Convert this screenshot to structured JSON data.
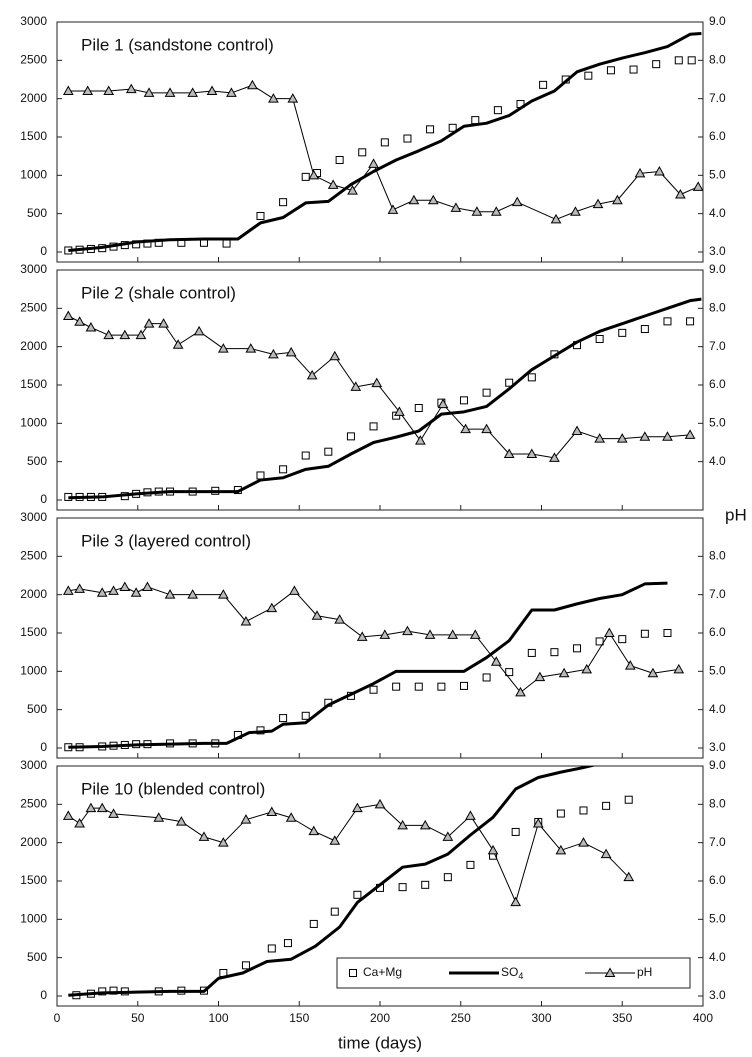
{
  "chart_data": [
    {
      "type": "line",
      "title": "Pile 1 (sandstone control)",
      "xlim": [
        0,
        400
      ],
      "xticks": [
        0,
        50,
        100,
        150,
        200,
        250,
        300,
        350,
        400
      ],
      "ylim": [
        0,
        3000
      ],
      "yticks": [
        0,
        500,
        1000,
        1500,
        2000,
        2500,
        3000
      ],
      "y2lim": [
        3,
        9
      ],
      "y2ticks": [
        {
          "value": 3,
          "label": "3.0"
        },
        {
          "value": 4,
          "label": "4.0"
        },
        {
          "value": 5,
          "label": "5.0"
        },
        {
          "value": 6,
          "label": "6.0"
        },
        {
          "value": 7,
          "label": "7.0"
        },
        {
          "value": 8,
          "label": "8.0"
        },
        {
          "value": 9,
          "label": "9.0"
        }
      ],
      "series": [
        {
          "color": "#000000",
          "marker": "square",
          "line_width": 0,
          "x": [
            7,
            14,
            21,
            28,
            35,
            42,
            49,
            56,
            63,
            77,
            91,
            105,
            126,
            140,
            154,
            161,
            175,
            189,
            203,
            217,
            231,
            245,
            259,
            273,
            287,
            301,
            315,
            329,
            343,
            357,
            371,
            385,
            393
          ],
          "values": [
            20,
            30,
            40,
            50,
            70,
            90,
            100,
            110,
            120,
            120,
            120,
            110,
            470,
            650,
            980,
            1030,
            1200,
            1300,
            1430,
            1480,
            1600,
            1620,
            1720,
            1850,
            1930,
            2180,
            2250,
            2300,
            2370,
            2380,
            2450,
            2500,
            2500
          ]
        },
        {
          "color": "#000000",
          "line_width": 3,
          "x": [
            7,
            28,
            49,
            70,
            91,
            112,
            126,
            140,
            154,
            168,
            182,
            196,
            210,
            224,
            238,
            252,
            266,
            280,
            294,
            308,
            322,
            336,
            350,
            364,
            378,
            392,
            399
          ],
          "values": [
            20,
            60,
            130,
            160,
            170,
            170,
            380,
            450,
            640,
            660,
            880,
            1050,
            1200,
            1320,
            1450,
            1640,
            1680,
            1780,
            1970,
            2100,
            2350,
            2450,
            2530,
            2600,
            2680,
            2840,
            2850
          ]
        },
        {
          "color": "#000000",
          "marker": "triangle",
          "line_width": 1,
          "axis": "y2",
          "x": [
            7,
            19,
            32,
            46,
            57,
            70,
            84,
            96,
            108,
            121,
            134,
            146,
            159,
            171,
            183,
            196,
            208,
            221,
            233,
            247,
            260,
            272,
            285,
            309,
            321,
            335,
            347,
            361,
            373,
            386,
            397
          ],
          "values": [
            7.2,
            7.2,
            7.2,
            7.25,
            7.15,
            7.15,
            7.15,
            7.2,
            7.15,
            7.35,
            7.0,
            7.0,
            5.0,
            4.75,
            4.6,
            5.3,
            4.1,
            4.35,
            4.35,
            4.15,
            4.05,
            4.05,
            4.3,
            3.85,
            4.05,
            4.25,
            4.35,
            5.05,
            5.1,
            4.5,
            4.7
          ]
        }
      ]
    },
    {
      "type": "line",
      "title": "Pile 2 (shale control)",
      "y2label": "pH",
      "xlim": [
        0,
        400
      ],
      "xticks": [
        0,
        50,
        100,
        150,
        200,
        250,
        300,
        350,
        400
      ],
      "ylim": [
        0,
        3000
      ],
      "yticks": [
        0,
        500,
        1000,
        1500,
        2000,
        2500,
        3000
      ],
      "y2lim": [
        3,
        9
      ],
      "y2ticks": [
        {
          "value": 4,
          "label": "4.0"
        },
        {
          "value": 5,
          "label": "5.0"
        },
        {
          "value": 6,
          "label": "6.0"
        },
        {
          "value": 7,
          "label": "7.0"
        },
        {
          "value": 8,
          "label": "8.0"
        },
        {
          "value": 9,
          "label": "9.0"
        }
      ],
      "series": [
        {
          "color": "#000000",
          "marker": "square",
          "line_width": 0,
          "x": [
            7,
            14,
            21,
            28,
            42,
            49,
            56,
            63,
            70,
            84,
            98,
            112,
            126,
            140,
            154,
            168,
            182,
            196,
            210,
            224,
            238,
            252,
            266,
            280,
            294,
            308,
            322,
            336,
            350,
            364,
            378,
            392
          ],
          "values": [
            40,
            40,
            40,
            40,
            50,
            80,
            100,
            110,
            110,
            110,
            120,
            130,
            320,
            400,
            580,
            630,
            830,
            960,
            1100,
            1200,
            1270,
            1300,
            1400,
            1530,
            1600,
            1900,
            2020,
            2100,
            2180,
            2230,
            2330,
            2330
          ]
        },
        {
          "color": "#000000",
          "line_width": 3,
          "x": [
            7,
            28,
            49,
            70,
            91,
            112,
            126,
            140,
            154,
            168,
            182,
            196,
            210,
            224,
            238,
            252,
            266,
            280,
            294,
            308,
            322,
            336,
            350,
            364,
            378,
            392,
            399
          ],
          "values": [
            30,
            40,
            80,
            110,
            110,
            110,
            260,
            290,
            400,
            440,
            600,
            750,
            820,
            900,
            1120,
            1150,
            1220,
            1450,
            1700,
            1880,
            2060,
            2200,
            2300,
            2400,
            2500,
            2600,
            2620
          ]
        },
        {
          "color": "#000000",
          "marker": "triangle",
          "line_width": 1,
          "axis": "y2",
          "x": [
            7,
            14,
            21,
            32,
            42,
            52,
            57,
            66,
            75,
            88,
            103,
            120,
            134,
            145,
            158,
            172,
            185,
            198,
            212,
            225,
            239,
            253,
            266,
            280,
            294,
            308,
            322,
            336,
            350,
            364,
            378,
            392
          ],
          "values": [
            7.8,
            7.65,
            7.5,
            7.3,
            7.3,
            7.3,
            7.6,
            7.6,
            7.05,
            7.4,
            6.95,
            6.95,
            6.8,
            6.85,
            6.25,
            6.75,
            5.95,
            6.05,
            5.3,
            4.55,
            5.5,
            4.85,
            4.85,
            4.2,
            4.2,
            4.1,
            4.8,
            4.6,
            4.6,
            4.65,
            4.65,
            4.7
          ]
        }
      ]
    },
    {
      "type": "line",
      "title": "Pile 3 (layered control)",
      "xlim": [
        0,
        400
      ],
      "xticks": [
        0,
        50,
        100,
        150,
        200,
        250,
        300,
        350,
        400
      ],
      "ylim": [
        0,
        3000
      ],
      "yticks": [
        0,
        500,
        1000,
        1500,
        2000,
        2500,
        3000
      ],
      "y2lim": [
        3,
        9
      ],
      "y2ticks": [
        {
          "value": 3,
          "label": "3.0"
        },
        {
          "value": 4,
          "label": "4.0"
        },
        {
          "value": 5,
          "label": "5.0"
        },
        {
          "value": 6,
          "label": "6.0"
        },
        {
          "value": 7,
          "label": "7.0"
        },
        {
          "value": 8,
          "label": "8.0"
        }
      ],
      "series": [
        {
          "color": "#000000",
          "marker": "square",
          "line_width": 0,
          "x": [
            7,
            14,
            28,
            35,
            42,
            49,
            56,
            70,
            84,
            98,
            112,
            126,
            140,
            154,
            168,
            182,
            196,
            210,
            224,
            238,
            252,
            266,
            280,
            294,
            308,
            322,
            336,
            350,
            364,
            378
          ],
          "values": [
            10,
            10,
            20,
            30,
            40,
            50,
            50,
            60,
            60,
            60,
            170,
            230,
            390,
            420,
            590,
            680,
            760,
            800,
            800,
            800,
            810,
            920,
            990,
            1240,
            1250,
            1300,
            1390,
            1420,
            1490,
            1500
          ]
        },
        {
          "color": "#000000",
          "line_width": 3,
          "x": [
            7,
            28,
            49,
            70,
            91,
            105,
            119,
            133,
            140,
            154,
            168,
            182,
            196,
            210,
            224,
            238,
            252,
            266,
            280,
            294,
            308,
            322,
            336,
            350,
            364,
            378
          ],
          "values": [
            10,
            20,
            40,
            50,
            60,
            60,
            200,
            220,
            310,
            330,
            560,
            700,
            840,
            1000,
            1000,
            1000,
            1000,
            1180,
            1400,
            1800,
            1800,
            1880,
            1950,
            2000,
            2140,
            2150
          ]
        },
        {
          "color": "#000000",
          "marker": "triangle",
          "line_width": 1,
          "axis": "y2",
          "x": [
            7,
            14,
            28,
            35,
            42,
            49,
            56,
            70,
            84,
            103,
            117,
            133,
            147,
            161,
            175,
            189,
            203,
            217,
            231,
            245,
            259,
            272,
            287,
            299,
            314,
            328,
            342,
            355,
            369,
            385
          ],
          "values": [
            7.1,
            7.15,
            7.05,
            7.1,
            7.2,
            7.05,
            7.2,
            7.0,
            7.0,
            7.0,
            6.3,
            6.65,
            7.1,
            6.45,
            6.35,
            5.9,
            5.95,
            6.05,
            5.95,
            5.95,
            5.95,
            5.25,
            4.45,
            4.85,
            4.95,
            5.05,
            6.0,
            5.15,
            4.95,
            5.05
          ]
        }
      ]
    },
    {
      "type": "line",
      "title": "Pile 10 (blended control)",
      "xlabel": "time (days)",
      "legend": "lower right",
      "xlim": [
        0,
        400
      ],
      "xticks": [
        0,
        50,
        100,
        150,
        200,
        250,
        300,
        350,
        400
      ],
      "ylim": [
        0,
        3000
      ],
      "yticks": [
        0,
        500,
        1000,
        1500,
        2000,
        2500,
        3000
      ],
      "y2lim": [
        3,
        9
      ],
      "y2ticks": [
        {
          "value": 3,
          "label": "3.0"
        },
        {
          "value": 4,
          "label": "4.0"
        },
        {
          "value": 5,
          "label": "5.0"
        },
        {
          "value": 6,
          "label": "6.0"
        },
        {
          "value": 7,
          "label": "7.0"
        },
        {
          "value": 8,
          "label": "8.0"
        },
        {
          "value": 9,
          "label": "9.0"
        }
      ],
      "series": [
        {
          "name": "Ca+Mg",
          "color": "#000000",
          "marker": "square",
          "line_width": 0,
          "x": [
            12,
            21,
            28,
            35,
            42,
            63,
            77,
            91,
            103,
            117,
            133,
            143,
            159,
            172,
            186,
            200,
            214,
            228,
            242,
            256,
            270,
            284,
            298,
            312,
            326,
            340,
            354
          ],
          "values": [
            10,
            30,
            60,
            70,
            60,
            60,
            70,
            70,
            300,
            400,
            620,
            690,
            940,
            1100,
            1320,
            1410,
            1420,
            1450,
            1550,
            1710,
            1830,
            2140,
            2270,
            2380,
            2420,
            2480,
            2560
          ]
        },
        {
          "name": "SO4",
          "color": "#000000",
          "line_width": 3,
          "x": [
            7,
            28,
            49,
            70,
            91,
            100,
            115,
            130,
            145,
            160,
            175,
            186,
            200,
            214,
            228,
            242,
            256,
            270,
            284,
            298,
            312,
            326,
            340,
            352
          ],
          "values": [
            10,
            40,
            50,
            60,
            60,
            230,
            300,
            450,
            480,
            650,
            900,
            1220,
            1450,
            1680,
            1720,
            1850,
            2100,
            2330,
            2700,
            2850,
            2920,
            2980,
            3050,
            3150
          ]
        },
        {
          "name": "pH",
          "color": "#000000",
          "marker": "triangle",
          "line_width": 1,
          "axis": "y2",
          "x": [
            7,
            14,
            21,
            28,
            35,
            63,
            77,
            91,
            103,
            117,
            133,
            145,
            159,
            172,
            186,
            200,
            214,
            228,
            242,
            256,
            270,
            284,
            298,
            312,
            326,
            340,
            354
          ],
          "values": [
            7.7,
            7.5,
            7.9,
            7.9,
            7.75,
            7.65,
            7.55,
            7.15,
            7.0,
            7.6,
            7.8,
            7.65,
            7.3,
            7.05,
            7.9,
            8.0,
            7.45,
            7.45,
            7.15,
            7.7,
            6.8,
            5.45,
            7.5,
            6.8,
            7.0,
            6.7,
            6.1
          ]
        }
      ]
    }
  ]
}
